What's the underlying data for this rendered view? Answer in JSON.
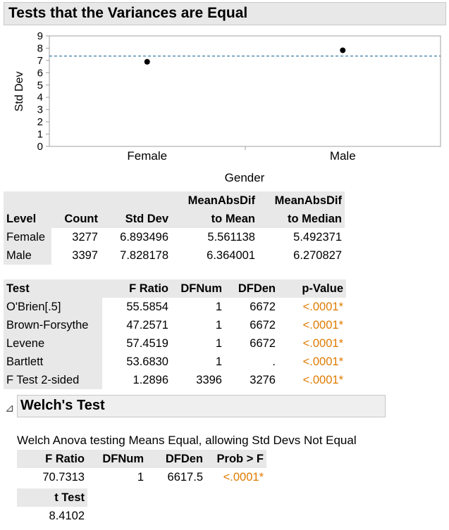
{
  "header": {
    "title": "Tests that the Variances are Equal"
  },
  "chart_data": {
    "type": "scatter",
    "ylabel": "Std Dev",
    "xlabel": "Gender",
    "categories": [
      "Female",
      "Male"
    ],
    "values": [
      6.893496,
      7.828178
    ],
    "reference_line": 7.36,
    "ylim": [
      0,
      9
    ],
    "yticks": [
      "0",
      "1",
      "2",
      "3",
      "4",
      "5",
      "6",
      "7",
      "8",
      "9"
    ],
    "colors": {
      "points": "#000000",
      "reference": "#3a7ca5",
      "frame": "#a0a0a0"
    }
  },
  "levels_table": {
    "headers": [
      "Level",
      "Count",
      "Std Dev",
      "MeanAbsDif to Mean",
      "MeanAbsDif to Median"
    ],
    "header_top": [
      "",
      "",
      "",
      "MeanAbsDif",
      "MeanAbsDif"
    ],
    "header_bottom": [
      "Level",
      "Count",
      "Std Dev",
      "to Mean",
      "to Median"
    ],
    "rows": [
      [
        "Female",
        "3277",
        "6.893496",
        "5.561138",
        "5.492371"
      ],
      [
        "Male",
        "3397",
        "7.828178",
        "6.364001",
        "6.270827"
      ]
    ]
  },
  "tests_table": {
    "headers": [
      "Test",
      "F Ratio",
      "DFNum",
      "DFDen",
      "p-Value"
    ],
    "rows": [
      [
        "O'Brien[.5]",
        "55.5854",
        "1",
        "6672",
        "<.0001*"
      ],
      [
        "Brown-Forsythe",
        "47.2571",
        "1",
        "6672",
        "<.0001*"
      ],
      [
        "Levene",
        "57.4519",
        "1",
        "6672",
        "<.0001*"
      ],
      [
        "Bartlett",
        "53.6830",
        "1",
        ".",
        "<.0001*"
      ],
      [
        "F Test 2-sided",
        "1.2896",
        "3396",
        "3276",
        "<.0001*"
      ]
    ]
  },
  "welch": {
    "toggle": "⊿",
    "title": "Welch's Test",
    "note": "Welch Anova testing Means Equal, allowing Std Devs Not Equal",
    "headers": [
      "F Ratio",
      "DFNum",
      "DFDen",
      "Prob > F"
    ],
    "row": [
      "70.7313",
      "1",
      "6617.5",
      "<.0001*"
    ],
    "t_header": "t Test",
    "t_value": "8.4102"
  }
}
